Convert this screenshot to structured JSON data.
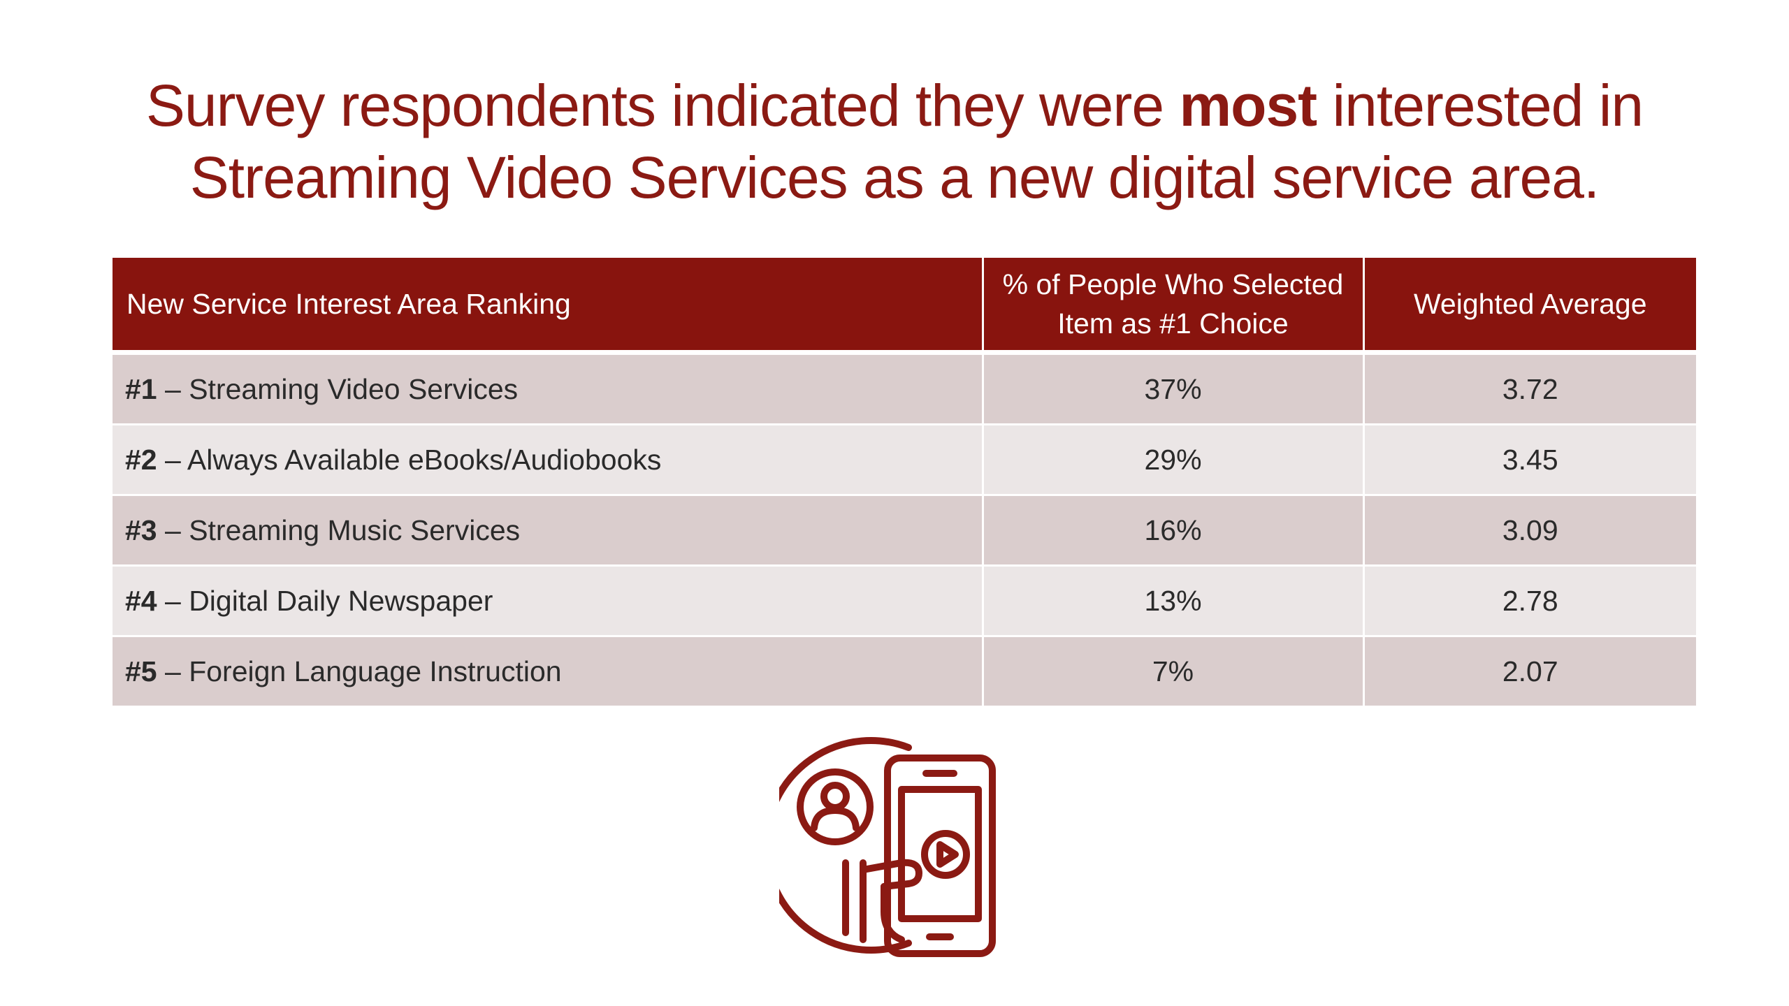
{
  "title": {
    "line1_pre": "Survey respondents indicated they were ",
    "line1_bold": "most",
    "line1_post": " interested in",
    "line2": "Streaming Video Services as a new digital service area."
  },
  "table": {
    "headers": {
      "col1": "New Service Interest Area Ranking",
      "col2_line1": "% of People Who Selected",
      "col2_line2": "Item as #1 Choice",
      "col3": "Weighted Average"
    },
    "rows": [
      {
        "rank": "#1",
        "service": " – Streaming Video Services",
        "percent": "37%",
        "weighted": "3.72"
      },
      {
        "rank": "#2",
        "service": " – Always Available eBooks/Audiobooks",
        "percent": "29%",
        "weighted": "3.45"
      },
      {
        "rank": "#3",
        "service": " – Streaming Music Services",
        "percent": "16%",
        "weighted": "3.09"
      },
      {
        "rank": "#4",
        "service": " – Digital Daily Newspaper",
        "percent": "13%",
        "weighted": "2.78"
      },
      {
        "rank": "#5",
        "service": " – Foreign Language Instruction",
        "percent": "7%",
        "weighted": "2.07"
      }
    ]
  },
  "colors": {
    "accent": "#8b1a13",
    "header_bg": "#88140e",
    "row_odd": "#dacdcd",
    "row_even": "#ebe6e6"
  },
  "icon": "streaming-video-phone-icon"
}
